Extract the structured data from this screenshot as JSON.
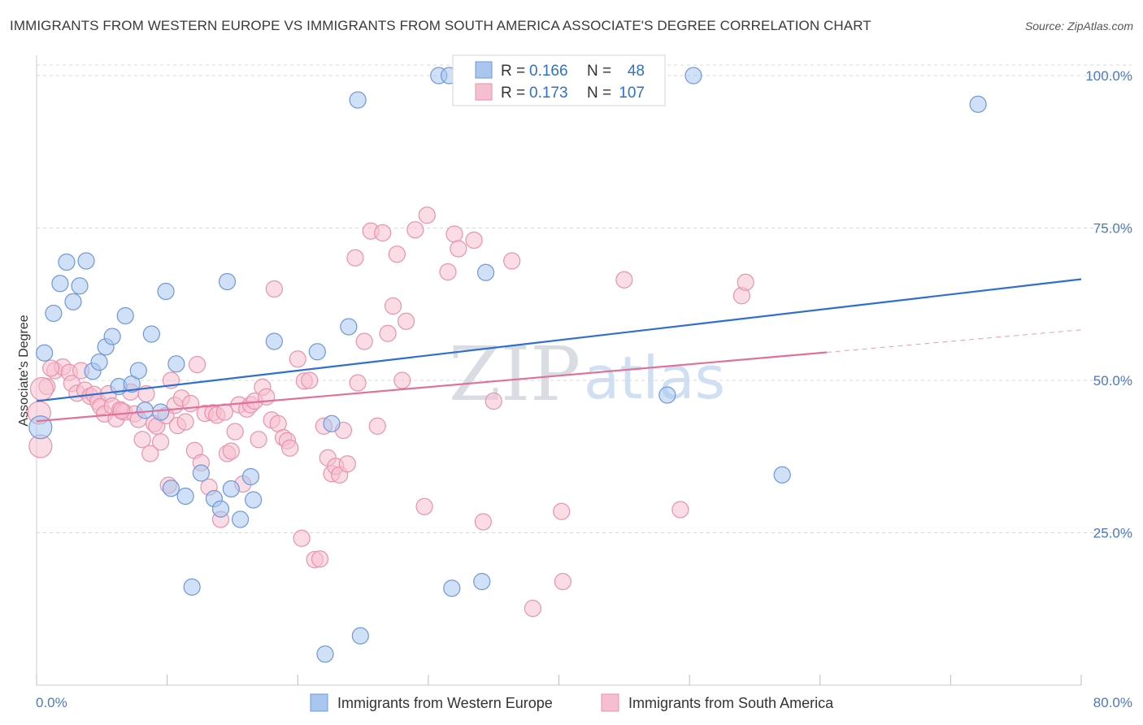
{
  "title": "IMMIGRANTS FROM WESTERN EUROPE VS IMMIGRANTS FROM SOUTH AMERICA ASSOCIATE'S DEGREE CORRELATION CHART",
  "source": "Source: ZipAtlas.com",
  "watermark": {
    "zip": "ZIP",
    "atlas": "atlas"
  },
  "colors": {
    "blue_fill": "#a9c6ef",
    "blue_stroke": "#6f98d8",
    "blue_line": "#2f6fce",
    "pink_fill": "#f6bfd0",
    "pink_stroke": "#e893ad",
    "pink_line": "#e0729a",
    "grid": "#d8d8d8",
    "tick_text": "#4a78c8"
  },
  "legend": {
    "r_label": "R =",
    "n_label": "N =",
    "series": [
      {
        "r": "0.166",
        "n": "48"
      },
      {
        "r": "0.173",
        "n": "107"
      }
    ]
  },
  "chart_data": {
    "type": "scatter",
    "xlabel": "",
    "ylabel": "Associate's Degree",
    "xlim": [
      0,
      80
    ],
    "ylim": [
      0,
      102
    ],
    "x_tick_labels": [
      "0.0%",
      "80.0%"
    ],
    "y_ticks": [
      25,
      50,
      75,
      100
    ],
    "y_tick_labels": [
      "25.0%",
      "50.0%",
      "75.0%",
      "100.0%"
    ],
    "series": [
      {
        "name": "Immigrants from Western Europe",
        "trend": {
          "x": [
            0,
            80
          ],
          "y": [
            46.6,
            66.6
          ]
        },
        "points": [
          [
            0.3,
            42.3
          ],
          [
            0.6,
            54.5
          ],
          [
            1.3,
            61.0
          ],
          [
            1.8,
            65.9
          ],
          [
            2.3,
            69.4
          ],
          [
            2.8,
            62.9
          ],
          [
            3.3,
            65.5
          ],
          [
            3.8,
            69.6
          ],
          [
            4.3,
            51.5
          ],
          [
            4.8,
            53.0
          ],
          [
            5.3,
            55.5
          ],
          [
            5.8,
            57.2
          ],
          [
            6.3,
            49.0
          ],
          [
            6.8,
            60.6
          ],
          [
            7.3,
            49.4
          ],
          [
            7.8,
            51.6
          ],
          [
            8.3,
            45.1
          ],
          [
            8.8,
            57.6
          ],
          [
            9.5,
            44.8
          ],
          [
            9.9,
            64.6
          ],
          [
            10.3,
            32.3
          ],
          [
            10.7,
            52.7
          ],
          [
            11.4,
            31.0
          ],
          [
            11.9,
            16.1
          ],
          [
            12.6,
            34.8
          ],
          [
            13.6,
            30.6
          ],
          [
            14.1,
            28.9
          ],
          [
            14.6,
            66.2
          ],
          [
            14.9,
            32.2
          ],
          [
            15.6,
            27.2
          ],
          [
            16.4,
            34.2
          ],
          [
            16.6,
            30.4
          ],
          [
            18.2,
            56.4
          ],
          [
            21.5,
            54.7
          ],
          [
            22.1,
            5.1
          ],
          [
            22.6,
            42.9
          ],
          [
            23.9,
            58.8
          ],
          [
            24.6,
            96.0
          ],
          [
            24.8,
            8.1
          ],
          [
            30.8,
            100.0
          ],
          [
            31.6,
            100.0
          ],
          [
            31.8,
            15.9
          ],
          [
            34.1,
            17.0
          ],
          [
            34.4,
            67.7
          ],
          [
            48.3,
            47.6
          ],
          [
            50.3,
            100.0
          ],
          [
            57.1,
            34.5
          ],
          [
            72.1,
            95.3
          ]
        ]
      },
      {
        "name": "Immigrants from South America",
        "trend": {
          "x": [
            0,
            60.5
          ],
          "y": [
            43.3,
            54.6
          ]
        },
        "trend_dashed": {
          "x": [
            60.5,
            80
          ],
          "y": [
            54.6,
            58.3
          ]
        },
        "points": [
          [
            0.2,
            44.7
          ],
          [
            0.3,
            39.2
          ],
          [
            0.8,
            49.0
          ],
          [
            1.4,
            51.6
          ],
          [
            2.0,
            52.2
          ],
          [
            2.5,
            51.3
          ],
          [
            2.7,
            49.5
          ],
          [
            3.1,
            47.9
          ],
          [
            3.4,
            51.6
          ],
          [
            3.7,
            48.4
          ],
          [
            4.1,
            47.4
          ],
          [
            4.4,
            47.7
          ],
          [
            4.7,
            46.5
          ],
          [
            4.9,
            45.7
          ],
          [
            5.2,
            44.5
          ],
          [
            5.5,
            47.8
          ],
          [
            5.8,
            45.8
          ],
          [
            6.1,
            43.7
          ],
          [
            6.4,
            45.2
          ],
          [
            6.7,
            44.8
          ],
          [
            7.2,
            48.1
          ],
          [
            7.5,
            44.5
          ],
          [
            7.8,
            43.6
          ],
          [
            8.1,
            40.3
          ],
          [
            8.4,
            47.8
          ],
          [
            8.7,
            38.0
          ],
          [
            9.0,
            42.9
          ],
          [
            9.2,
            42.5
          ],
          [
            9.5,
            39.9
          ],
          [
            9.9,
            44.2
          ],
          [
            10.1,
            32.8
          ],
          [
            10.3,
            50.0
          ],
          [
            10.6,
            45.9
          ],
          [
            10.8,
            42.6
          ],
          [
            11.1,
            47.1
          ],
          [
            11.4,
            43.2
          ],
          [
            11.8,
            46.2
          ],
          [
            12.1,
            38.5
          ],
          [
            12.3,
            52.6
          ],
          [
            12.6,
            36.5
          ],
          [
            12.9,
            44.6
          ],
          [
            13.2,
            32.5
          ],
          [
            13.5,
            44.7
          ],
          [
            13.8,
            44.3
          ],
          [
            14.1,
            27.2
          ],
          [
            14.4,
            44.8
          ],
          [
            14.6,
            38.0
          ],
          [
            14.9,
            38.4
          ],
          [
            15.2,
            41.6
          ],
          [
            15.5,
            46.0
          ],
          [
            15.8,
            33.0
          ],
          [
            16.1,
            45.3
          ],
          [
            16.4,
            46.0
          ],
          [
            16.7,
            46.6
          ],
          [
            17.0,
            40.3
          ],
          [
            17.3,
            48.9
          ],
          [
            17.6,
            47.3
          ],
          [
            18.0,
            43.5
          ],
          [
            18.2,
            65.0
          ],
          [
            18.5,
            42.9
          ],
          [
            18.9,
            40.6
          ],
          [
            19.2,
            40.1
          ],
          [
            19.4,
            38.9
          ],
          [
            20.0,
            53.5
          ],
          [
            20.3,
            24.1
          ],
          [
            20.5,
            49.9
          ],
          [
            20.9,
            50.0
          ],
          [
            21.3,
            20.6
          ],
          [
            21.7,
            20.7
          ],
          [
            22.0,
            42.5
          ],
          [
            22.3,
            37.3
          ],
          [
            22.6,
            34.7
          ],
          [
            22.9,
            35.9
          ],
          [
            23.2,
            34.5
          ],
          [
            23.5,
            41.8
          ],
          [
            23.8,
            36.3
          ],
          [
            24.4,
            70.1
          ],
          [
            24.6,
            49.6
          ],
          [
            25.1,
            56.4
          ],
          [
            25.6,
            74.5
          ],
          [
            26.1,
            42.5
          ],
          [
            26.5,
            74.2
          ],
          [
            26.9,
            57.7
          ],
          [
            27.3,
            62.2
          ],
          [
            27.6,
            70.7
          ],
          [
            28.0,
            50.0
          ],
          [
            28.3,
            59.7
          ],
          [
            29.0,
            74.7
          ],
          [
            29.7,
            29.3
          ],
          [
            29.9,
            77.1
          ],
          [
            31.5,
            67.8
          ],
          [
            32.0,
            74.0
          ],
          [
            32.3,
            71.6
          ],
          [
            33.5,
            73.0
          ],
          [
            34.2,
            26.8
          ],
          [
            35.0,
            46.6
          ],
          [
            36.4,
            69.6
          ],
          [
            38.0,
            12.6
          ],
          [
            40.2,
            28.5
          ],
          [
            40.3,
            17.0
          ],
          [
            45.0,
            66.5
          ],
          [
            49.3,
            28.8
          ],
          [
            54.0,
            63.9
          ],
          [
            54.3,
            66.1
          ],
          [
            0.4,
            48.6
          ],
          [
            1.1,
            52.0
          ],
          [
            6.5,
            45.0
          ]
        ]
      }
    ]
  }
}
